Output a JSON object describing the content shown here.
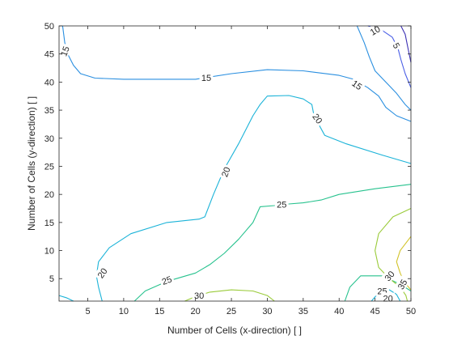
{
  "chart_data": {
    "type": "contour",
    "title": "",
    "xlabel": "Number of Cells (x-direction) [ ]",
    "ylabel": "Number of Cells (y-direction) [ ]",
    "xlim": [
      1,
      50
    ],
    "ylim": [
      1,
      50
    ],
    "xticks": [
      5,
      10,
      15,
      20,
      25,
      30,
      35,
      40,
      45,
      50
    ],
    "yticks": [
      5,
      10,
      15,
      20,
      25,
      30,
      35,
      40,
      45,
      50
    ],
    "grid": false,
    "legend": "none",
    "levels": [
      {
        "level": 5,
        "color": "#3b2fb4",
        "paths": [
          [
            [
              48.6,
              50
            ],
            [
              49.2,
              48.5
            ],
            [
              49.6,
              46.0
            ],
            [
              50,
              43.5
            ]
          ]
        ],
        "labels": [
          {
            "text": "5",
            "x": 48.0,
            "y": 46.5,
            "rotation": 60
          }
        ]
      },
      {
        "level": 10,
        "color": "#4a5ee6",
        "paths": [
          [
            [
              44.0,
              50
            ],
            [
              46.0,
              49.2
            ],
            [
              47.4,
              48.0
            ],
            [
              48.2,
              46.0
            ],
            [
              48.6,
              44.0
            ],
            [
              49.2,
              41.5
            ],
            [
              50,
              39.0
            ]
          ]
        ],
        "labels": [
          {
            "text": "10",
            "x": 45.0,
            "y": 49.2,
            "rotation": -30
          }
        ]
      },
      {
        "level": 15,
        "color": "#2a8fe0",
        "paths": [
          [
            [
              1.5,
              50
            ],
            [
              1.8,
              47.0
            ],
            [
              2.2,
              45.0
            ],
            [
              3.0,
              43.0
            ],
            [
              4.0,
              41.5
            ],
            [
              6.0,
              40.7
            ],
            [
              10.0,
              40.5
            ],
            [
              15.0,
              40.5
            ],
            [
              20.0,
              40.5
            ],
            [
              25.0,
              41.5
            ],
            [
              30.0,
              42.2
            ],
            [
              35.0,
              42.0
            ],
            [
              40.0,
              41.2
            ],
            [
              42.0,
              40.5
            ],
            [
              44.0,
              39.0
            ],
            [
              45.5,
              37.5
            ],
            [
              46.5,
              35.5
            ],
            [
              48.0,
              34.0
            ],
            [
              50,
              33.0
            ]
          ],
          [
            [
              42.5,
              50
            ],
            [
              43.5,
              47.0
            ],
            [
              44.2,
              44.5
            ],
            [
              45.0,
              42.0
            ],
            [
              46.5,
              40.0
            ],
            [
              48.0,
              38.0
            ],
            [
              49.2,
              36.0
            ],
            [
              50,
              35.0
            ]
          ]
        ],
        "labels": [
          {
            "text": "15",
            "x": 1.8,
            "y": 45.5,
            "rotation": -70
          },
          {
            "text": "15",
            "x": 21.5,
            "y": 40.8,
            "rotation": 0
          },
          {
            "text": "15",
            "x": 42.5,
            "y": 39.5,
            "rotation": 35
          }
        ]
      },
      {
        "level": 20,
        "color": "#1bb3d8",
        "paths": [
          [
            [
              7.0,
              1
            ],
            [
              6.5,
              3.5
            ],
            [
              6.2,
              5.5
            ],
            [
              6.5,
              8.0
            ],
            [
              8.0,
              10.5
            ],
            [
              11.0,
              13.0
            ],
            [
              16.0,
              15.0
            ],
            [
              20.5,
              15.6
            ],
            [
              21.3,
              16.0
            ],
            [
              22.5,
              20.0
            ],
            [
              24.0,
              24.5
            ],
            [
              26.0,
              29.0
            ],
            [
              28.0,
              34.0
            ],
            [
              29.0,
              36.0
            ],
            [
              30.0,
              37.5
            ],
            [
              33.0,
              37.6
            ],
            [
              35.0,
              37.0
            ],
            [
              36.2,
              36.0
            ],
            [
              36.5,
              34.0
            ],
            [
              38.0,
              30.5
            ],
            [
              41.0,
              29.0
            ],
            [
              46.0,
              27.0
            ],
            [
              50,
              25.5
            ]
          ],
          [
            [
              1.0,
              2.0
            ],
            [
              2.0,
              1.6
            ],
            [
              3.0,
              1.0
            ]
          ]
        ],
        "labels": [
          {
            "text": "20",
            "x": 7.0,
            "y": 6.0,
            "rotation": -55
          },
          {
            "text": "20",
            "x": 24.2,
            "y": 24.0,
            "rotation": -70
          },
          {
            "text": "20",
            "x": 37.0,
            "y": 33.5,
            "rotation": 55
          }
        ]
      },
      {
        "level": 25,
        "color": "#27c28e",
        "paths": [
          [
            [
              11.5,
              1
            ],
            [
              13.0,
              2.8
            ],
            [
              16.0,
              4.5
            ],
            [
              20.0,
              6.0
            ],
            [
              22.0,
              7.5
            ],
            [
              24.0,
              9.5
            ],
            [
              26.0,
              12.0
            ],
            [
              28.0,
              15.0
            ],
            [
              29.0,
              17.8
            ],
            [
              31.0,
              18.0
            ],
            [
              33.0,
              18.3
            ],
            [
              35.0,
              18.5
            ],
            [
              37.5,
              19.0
            ],
            [
              40.0,
              20.0
            ],
            [
              45.0,
              21.0
            ],
            [
              50,
              21.8
            ]
          ],
          [
            [
              40.8,
              1
            ],
            [
              41.5,
              3.5
            ],
            [
              43.0,
              5.5
            ],
            [
              46.0,
              5.5
            ],
            [
              48.5,
              4.0
            ],
            [
              50,
              2.8
            ]
          ]
        ],
        "labels": [
          {
            "text": "25",
            "x": 16.0,
            "y": 4.7,
            "rotation": -20
          },
          {
            "text": "25",
            "x": 32.0,
            "y": 18.2,
            "rotation": 0
          },
          {
            "text": "25",
            "x": 46.0,
            "y": 2.8,
            "rotation": 0
          }
        ]
      },
      {
        "level": 30,
        "color": "#9acb3a",
        "paths": [
          [
            [
              18.5,
              1
            ],
            [
              20.0,
              1.8
            ],
            [
              22.0,
              2.6
            ],
            [
              25.0,
              3.0
            ],
            [
              28.0,
              2.8
            ],
            [
              30.0,
              2.0
            ],
            [
              31.0,
              1
            ]
          ],
          [
            [
              50,
              17.5
            ],
            [
              47.5,
              16.0
            ],
            [
              45.5,
              13.0
            ],
            [
              45.0,
              10.0
            ],
            [
              45.5,
              7.0
            ],
            [
              47.0,
              5.0
            ],
            [
              48.5,
              3.5
            ],
            [
              49.3,
              2.0
            ],
            [
              49.5,
              1
            ]
          ]
        ],
        "labels": [
          {
            "text": "30",
            "x": 20.5,
            "y": 2.0,
            "rotation": 0
          },
          {
            "text": "30",
            "x": 47.0,
            "y": 5.5,
            "rotation": -50
          }
        ]
      },
      {
        "level": 35,
        "color": "#d2c32a",
        "paths": [
          [
            [
              50,
              12.5
            ],
            [
              48.5,
              10.0
            ],
            [
              48.0,
              8.0
            ],
            [
              48.5,
              6.0
            ],
            [
              49.0,
              4.5
            ],
            [
              50,
              3.0
            ]
          ]
        ],
        "labels": [
          {
            "text": "35",
            "x": 48.8,
            "y": 4.0,
            "rotation": -60
          }
        ]
      },
      {
        "level": 20,
        "color": "#1bb3d8",
        "paths": [
          [
            [
              44.5,
              1
            ],
            [
              45.5,
              2.5
            ],
            [
              47.0,
              3.0
            ],
            [
              48.0,
              2.2
            ],
            [
              48.5,
              1
            ]
          ]
        ],
        "labels": [
          {
            "text": "20",
            "x": 46.8,
            "y": 1.5,
            "rotation": 0
          }
        ]
      }
    ]
  }
}
